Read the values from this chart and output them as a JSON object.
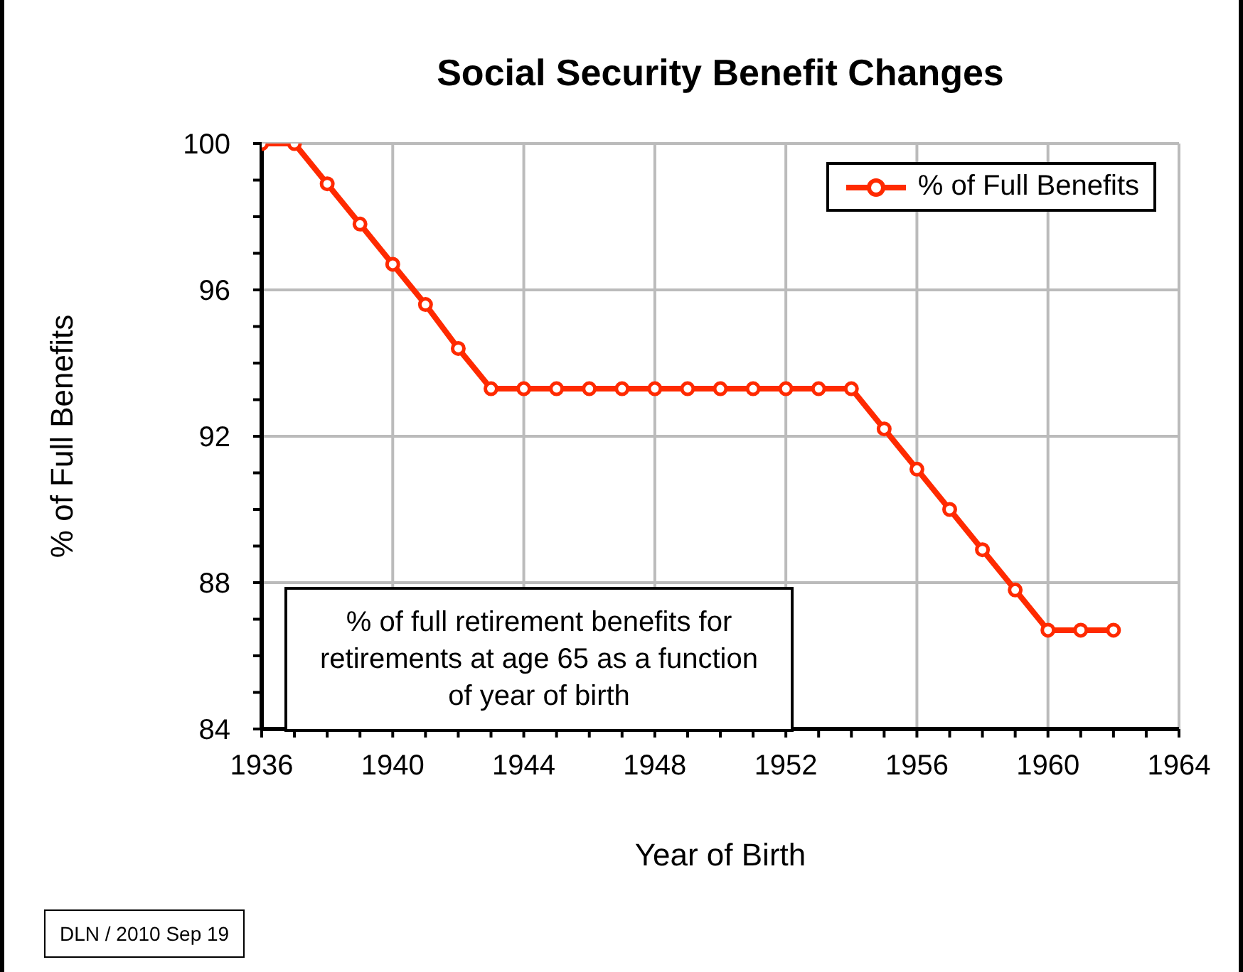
{
  "chart_data": {
    "type": "line",
    "title": "Social Security Benefit Changes",
    "xlabel": "Year of Birth",
    "ylabel": "% of Full Benefits",
    "x": [
      1936,
      1937,
      1938,
      1939,
      1940,
      1941,
      1942,
      1943,
      1944,
      1945,
      1946,
      1947,
      1948,
      1949,
      1950,
      1951,
      1952,
      1953,
      1954,
      1955,
      1956,
      1957,
      1958,
      1959,
      1960,
      1961,
      1962
    ],
    "series": [
      {
        "name": "% of Full Benefits",
        "color": "#ff2a00",
        "values": [
          100,
          100,
          98.9,
          97.8,
          96.7,
          95.6,
          94.4,
          93.3,
          93.3,
          93.3,
          93.3,
          93.3,
          93.3,
          93.3,
          93.3,
          93.3,
          93.3,
          93.3,
          93.3,
          92.2,
          91.1,
          90,
          88.9,
          87.8,
          86.7,
          86.7,
          86.7
        ]
      }
    ],
    "xlim": [
      1936,
      1964
    ],
    "xticks": [
      1936,
      {
        "value": 1937,
        "label": null
      },
      {
        "value": 1938,
        "label": null
      },
      {
        "value": 1939,
        "label": null
      },
      1940,
      {
        "value": 1941,
        "label": null
      },
      {
        "value": 1942,
        "label": null
      },
      {
        "value": 1943,
        "label": null
      },
      1944,
      {
        "value": 1945,
        "label": null
      },
      {
        "value": 1946,
        "label": null
      },
      {
        "value": 1947,
        "label": null
      },
      1948,
      {
        "value": 1949,
        "label": null
      },
      {
        "value": 1950,
        "label": null
      },
      {
        "value": 1951,
        "label": null
      },
      1952,
      {
        "value": 1953,
        "label": null
      },
      {
        "value": 1954,
        "label": null
      },
      {
        "value": 1955,
        "label": null
      },
      1956,
      {
        "value": 1957,
        "label": null
      },
      {
        "value": 1958,
        "label": null
      },
      {
        "value": 1959,
        "label": null
      },
      1960,
      {
        "value": 1961,
        "label": null
      },
      {
        "value": 1962,
        "label": null
      },
      {
        "value": 1963,
        "label": null
      },
      1964
    ],
    "ylim": [
      84,
      100
    ],
    "yticks": [
      84,
      {
        "value": 85,
        "label": null
      },
      {
        "value": 86,
        "label": null
      },
      {
        "value": 87,
        "label": null
      },
      88,
      {
        "value": 89,
        "label": null
      },
      {
        "value": 90,
        "label": null
      },
      {
        "value": 91,
        "label": null
      },
      92,
      {
        "value": 93,
        "label": null
      },
      {
        "value": 94,
        "label": null
      },
      {
        "value": 95,
        "label": null
      },
      96,
      {
        "value": 97,
        "label": null
      },
      {
        "value": 98,
        "label": null
      },
      {
        "value": 99,
        "label": null
      },
      100
    ],
    "grid": true,
    "legend": "top right",
    "marker": "circle",
    "line_style": "solid",
    "annotations": [
      "% of full retirement benefits for retirements at age 65 as a function of year of birth",
      "DLN / 2010 Sep 19"
    ]
  }
}
